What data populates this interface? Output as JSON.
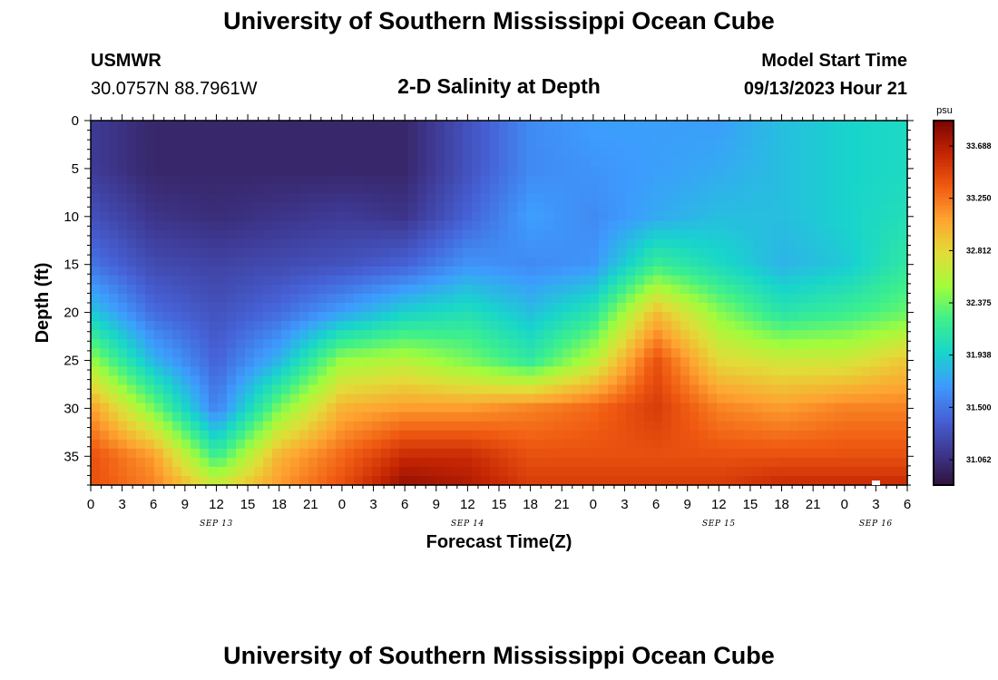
{
  "header": {
    "title": "University of Southern Mississippi Ocean Cube",
    "station_id": "USMWR",
    "coordinates": "30.0757N  88.7961W",
    "model_start_label": "Model Start Time",
    "model_start_value": "09/13/2023 Hour 21"
  },
  "footer": {
    "title": "University of Southern Mississippi Ocean Cube"
  },
  "chart_data": {
    "type": "heatmap",
    "title": "2-D Salinity at Depth",
    "xlabel": "Forecast Time(Z)",
    "ylabel": "Depth (ft)",
    "x_ticks": [
      "0",
      "3",
      "6",
      "9",
      "12",
      "15",
      "18",
      "21",
      "0",
      "3",
      "6",
      "9",
      "12",
      "15",
      "18",
      "21",
      "0",
      "3",
      "6",
      "9",
      "12",
      "15",
      "18",
      "21",
      "0",
      "3",
      "6"
    ],
    "date_labels": [
      {
        "label": "SEP 13",
        "at_hour": 12
      },
      {
        "label": "SEP 14",
        "at_hour": 36
      },
      {
        "label": "SEP 15",
        "at_hour": 60
      },
      {
        "label": "SEP 16",
        "at_hour": 75
      }
    ],
    "x_range_hours": [
      0,
      78
    ],
    "y_ticks": [
      "0",
      "5",
      "10",
      "15",
      "20",
      "25",
      "30",
      "35"
    ],
    "y_range_ft": [
      0,
      38
    ],
    "colorbar": {
      "unit": "psu",
      "range": [
        30.85,
        33.9
      ],
      "tick_values": [
        31.062,
        31.5,
        31.938,
        32.375,
        32.812,
        33.25,
        33.688
      ],
      "tick_labels": [
        "31.062",
        "31.500",
        "31.938",
        "32.375",
        "32.812",
        "33.250",
        "33.688"
      ]
    },
    "depth_grid_ft": [
      0,
      5,
      10,
      15,
      20,
      25,
      30,
      35,
      38
    ],
    "time_grid_hours": [
      0,
      6,
      12,
      18,
      24,
      30,
      36,
      42,
      48,
      54,
      60,
      66,
      72,
      78
    ],
    "salinity_psu": [
      [
        31.15,
        31.0,
        31.0,
        31.0,
        31.0,
        31.0,
        31.3,
        31.6,
        31.7,
        31.7,
        31.7,
        31.85,
        31.95,
        32.0
      ],
      [
        31.15,
        31.0,
        31.0,
        31.0,
        31.0,
        31.0,
        31.3,
        31.6,
        31.65,
        31.7,
        31.75,
        31.85,
        31.95,
        32.0
      ],
      [
        31.3,
        31.1,
        31.05,
        31.1,
        31.15,
        31.1,
        31.4,
        31.7,
        31.6,
        31.75,
        31.85,
        31.85,
        31.95,
        32.05
      ],
      [
        31.5,
        31.25,
        31.2,
        31.25,
        31.3,
        31.4,
        31.65,
        31.6,
        31.65,
        32.2,
        32.0,
        31.8,
        31.9,
        32.15
      ],
      [
        31.9,
        31.45,
        31.3,
        31.45,
        31.7,
        31.95,
        32.05,
        31.85,
        32.1,
        32.95,
        32.45,
        32.1,
        32.2,
        32.35
      ],
      [
        32.5,
        31.8,
        31.4,
        31.8,
        32.5,
        32.6,
        32.4,
        32.15,
        32.6,
        33.4,
        32.8,
        32.7,
        32.7,
        32.9
      ],
      [
        33.1,
        32.4,
        31.55,
        32.4,
        33.0,
        33.1,
        33.1,
        33.2,
        33.3,
        33.5,
        33.2,
        33.1,
        33.2,
        33.2
      ],
      [
        33.4,
        33.1,
        32.2,
        33.0,
        33.3,
        33.6,
        33.6,
        33.4,
        33.4,
        33.4,
        33.4,
        33.4,
        33.4,
        33.4
      ],
      [
        33.4,
        33.2,
        32.7,
        33.1,
        33.4,
        33.8,
        33.7,
        33.5,
        33.5,
        33.5,
        33.5,
        33.6,
        33.6,
        33.6
      ]
    ]
  },
  "colors": {
    "colormap": [
      "#30123b",
      "#3e3891",
      "#4662d7",
      "#3e9bfe",
      "#18d5cb",
      "#3ef08b",
      "#a2fc3c",
      "#e2dc38",
      "#fea431",
      "#f05b12",
      "#c42503",
      "#7a0403"
    ]
  }
}
